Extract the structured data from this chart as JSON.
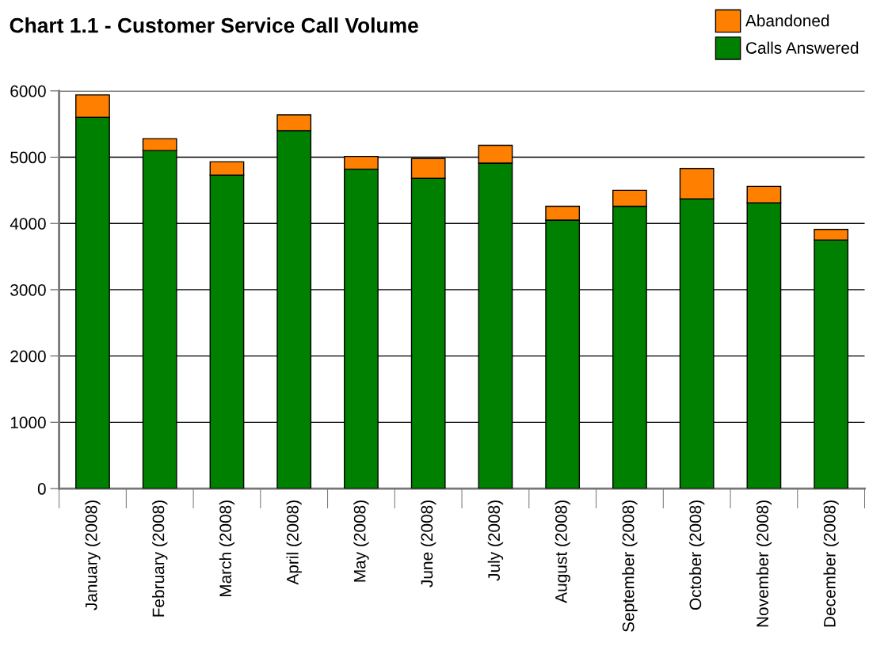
{
  "chart_data": {
    "type": "bar",
    "title": "Chart 1.1 - Customer Service Call Volume",
    "categories": [
      "January (2008)",
      "February (2008)",
      "March (2008)",
      "April (2008)",
      "May (2008)",
      "June (2008)",
      "July (2008)",
      "August (2008)",
      "September (2008)",
      "October (2008)",
      "November (2008)",
      "December (2008)"
    ],
    "series": [
      {
        "name": "Calls Answered",
        "color": "#008000",
        "values": [
          5600,
          5100,
          4730,
          5400,
          4820,
          4680,
          4910,
          4050,
          4260,
          4370,
          4310,
          3750
        ]
      },
      {
        "name": "Abandoned",
        "color": "#ff8000",
        "values": [
          340,
          180,
          200,
          240,
          190,
          300,
          270,
          210,
          240,
          460,
          250,
          160
        ]
      }
    ],
    "stacked": true,
    "ylim": [
      0,
      6000
    ],
    "yticks": [
      0,
      1000,
      2000,
      3000,
      4000,
      5000,
      6000
    ],
    "grid": "y",
    "legend": "top right"
  }
}
